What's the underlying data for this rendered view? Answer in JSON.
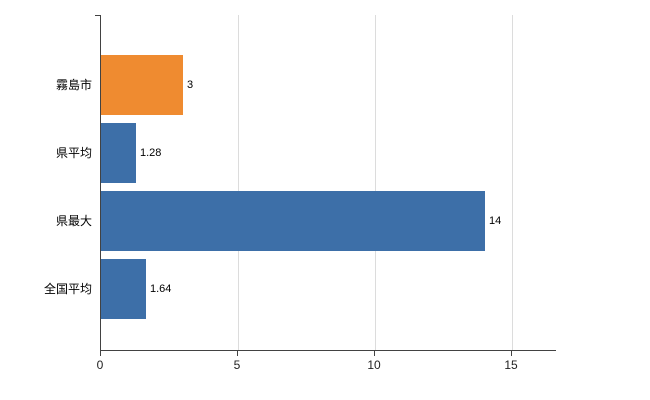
{
  "chart_data": {
    "type": "bar",
    "orientation": "horizontal",
    "title": "",
    "categories": [
      "霧島市",
      "県平均",
      "県最大",
      "全国平均"
    ],
    "values": [
      3,
      1.28,
      14,
      1.64
    ],
    "value_labels": [
      "3",
      "1.28",
      "14",
      "1.64"
    ],
    "bar_colors": [
      "#ef8b30",
      "#3d6fa8",
      "#3d6fa8",
      "#3d6fa8"
    ],
    "x_tick_labels": [
      "0",
      "5",
      "10",
      "15"
    ],
    "x_tick_values": [
      0,
      5,
      10,
      15
    ],
    "xlim": [
      0,
      16.6
    ],
    "grid": "vertical",
    "legend": "none",
    "axis_color": "#424242",
    "grid_color": "#dcdcdc",
    "text_color": "#000000",
    "background_color": "#ffffff"
  }
}
